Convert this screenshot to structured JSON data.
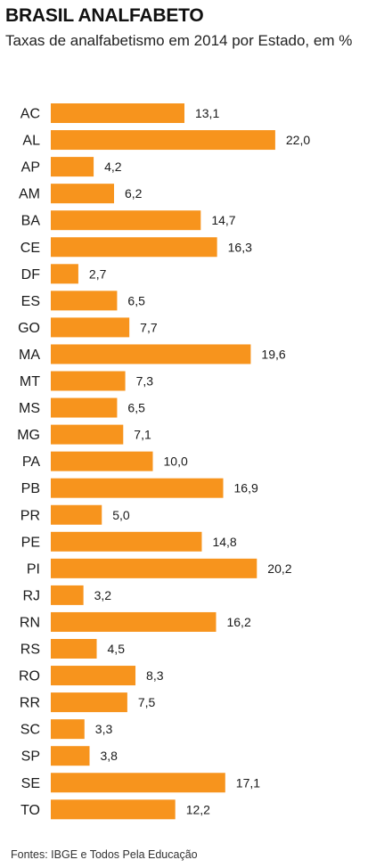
{
  "header": {
    "title": "BRASIL ANALFABETO",
    "subtitle": "Taxas de analfabetismo em 2014 por Estado, em %"
  },
  "footer": {
    "source": "Fontes: IBGE e Todos Pela Educação"
  },
  "colors": {
    "bar": "#F7941D",
    "label": "#1a1a1a"
  },
  "chart_data": {
    "type": "bar",
    "orientation": "horizontal",
    "title": "BRASIL ANALFABETO",
    "subtitle": "Taxas de analfabetismo em 2014 por Estado, em %",
    "xlabel": "",
    "ylabel": "",
    "grid": false,
    "xlim": [
      0,
      22
    ],
    "categories": [
      "AC",
      "AL",
      "AP",
      "AM",
      "BA",
      "CE",
      "DF",
      "ES",
      "GO",
      "MA",
      "MT",
      "MS",
      "MG",
      "PA",
      "PB",
      "PR",
      "PE",
      "PI",
      "RJ",
      "RN",
      "RS",
      "RO",
      "RR",
      "SC",
      "SP",
      "SE",
      "TO"
    ],
    "values": [
      13.1,
      22.0,
      4.2,
      6.2,
      14.7,
      16.3,
      2.7,
      6.5,
      7.7,
      19.6,
      7.3,
      6.5,
      7.1,
      10.0,
      16.9,
      5.0,
      14.8,
      20.2,
      3.2,
      16.2,
      4.5,
      8.3,
      7.5,
      3.3,
      3.8,
      17.1,
      12.2
    ],
    "value_labels": [
      "13,1",
      "22,0",
      "4,2",
      "6,2",
      "14,7",
      "16,3",
      "2,7",
      "6,5",
      "7,7",
      "19,6",
      "7,3",
      "6,5",
      "7,1",
      "10,0",
      "16,9",
      "5,0",
      "14,8",
      "20,2",
      "3,2",
      "16,2",
      "4,5",
      "8,3",
      "7,5",
      "3,3",
      "3,8",
      "17,1",
      "12,2"
    ]
  }
}
